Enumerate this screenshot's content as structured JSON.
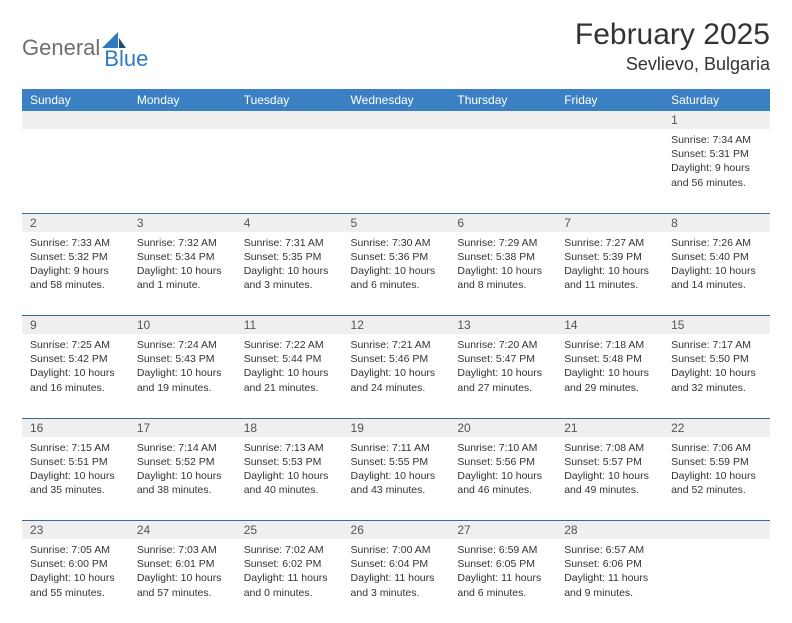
{
  "brand": {
    "text1": "General",
    "text2": "Blue"
  },
  "title": "February 2025",
  "location": "Sevlievo, Bulgaria",
  "colors": {
    "header_bg": "#3a80c3",
    "header_text": "#ffffff",
    "daynum_bg": "#efefef",
    "cell_border": "#3a6a94",
    "logo_gray": "#6f6f6f",
    "logo_blue": "#2f7bbf"
  },
  "weekdays": [
    "Sunday",
    "Monday",
    "Tuesday",
    "Wednesday",
    "Thursday",
    "Friday",
    "Saturday"
  ],
  "weeks": [
    {
      "nums": [
        "",
        "",
        "",
        "",
        "",
        "",
        "1"
      ],
      "cells": [
        null,
        null,
        null,
        null,
        null,
        null,
        {
          "sunrise": "Sunrise: 7:34 AM",
          "sunset": "Sunset: 5:31 PM",
          "daylight": "Daylight: 9 hours and 56 minutes."
        }
      ]
    },
    {
      "nums": [
        "2",
        "3",
        "4",
        "5",
        "6",
        "7",
        "8"
      ],
      "cells": [
        {
          "sunrise": "Sunrise: 7:33 AM",
          "sunset": "Sunset: 5:32 PM",
          "daylight": "Daylight: 9 hours and 58 minutes."
        },
        {
          "sunrise": "Sunrise: 7:32 AM",
          "sunset": "Sunset: 5:34 PM",
          "daylight": "Daylight: 10 hours and 1 minute."
        },
        {
          "sunrise": "Sunrise: 7:31 AM",
          "sunset": "Sunset: 5:35 PM",
          "daylight": "Daylight: 10 hours and 3 minutes."
        },
        {
          "sunrise": "Sunrise: 7:30 AM",
          "sunset": "Sunset: 5:36 PM",
          "daylight": "Daylight: 10 hours and 6 minutes."
        },
        {
          "sunrise": "Sunrise: 7:29 AM",
          "sunset": "Sunset: 5:38 PM",
          "daylight": "Daylight: 10 hours and 8 minutes."
        },
        {
          "sunrise": "Sunrise: 7:27 AM",
          "sunset": "Sunset: 5:39 PM",
          "daylight": "Daylight: 10 hours and 11 minutes."
        },
        {
          "sunrise": "Sunrise: 7:26 AM",
          "sunset": "Sunset: 5:40 PM",
          "daylight": "Daylight: 10 hours and 14 minutes."
        }
      ]
    },
    {
      "nums": [
        "9",
        "10",
        "11",
        "12",
        "13",
        "14",
        "15"
      ],
      "cells": [
        {
          "sunrise": "Sunrise: 7:25 AM",
          "sunset": "Sunset: 5:42 PM",
          "daylight": "Daylight: 10 hours and 16 minutes."
        },
        {
          "sunrise": "Sunrise: 7:24 AM",
          "sunset": "Sunset: 5:43 PM",
          "daylight": "Daylight: 10 hours and 19 minutes."
        },
        {
          "sunrise": "Sunrise: 7:22 AM",
          "sunset": "Sunset: 5:44 PM",
          "daylight": "Daylight: 10 hours and 21 minutes."
        },
        {
          "sunrise": "Sunrise: 7:21 AM",
          "sunset": "Sunset: 5:46 PM",
          "daylight": "Daylight: 10 hours and 24 minutes."
        },
        {
          "sunrise": "Sunrise: 7:20 AM",
          "sunset": "Sunset: 5:47 PM",
          "daylight": "Daylight: 10 hours and 27 minutes."
        },
        {
          "sunrise": "Sunrise: 7:18 AM",
          "sunset": "Sunset: 5:48 PM",
          "daylight": "Daylight: 10 hours and 29 minutes."
        },
        {
          "sunrise": "Sunrise: 7:17 AM",
          "sunset": "Sunset: 5:50 PM",
          "daylight": "Daylight: 10 hours and 32 minutes."
        }
      ]
    },
    {
      "nums": [
        "16",
        "17",
        "18",
        "19",
        "20",
        "21",
        "22"
      ],
      "cells": [
        {
          "sunrise": "Sunrise: 7:15 AM",
          "sunset": "Sunset: 5:51 PM",
          "daylight": "Daylight: 10 hours and 35 minutes."
        },
        {
          "sunrise": "Sunrise: 7:14 AM",
          "sunset": "Sunset: 5:52 PM",
          "daylight": "Daylight: 10 hours and 38 minutes."
        },
        {
          "sunrise": "Sunrise: 7:13 AM",
          "sunset": "Sunset: 5:53 PM",
          "daylight": "Daylight: 10 hours and 40 minutes."
        },
        {
          "sunrise": "Sunrise: 7:11 AM",
          "sunset": "Sunset: 5:55 PM",
          "daylight": "Daylight: 10 hours and 43 minutes."
        },
        {
          "sunrise": "Sunrise: 7:10 AM",
          "sunset": "Sunset: 5:56 PM",
          "daylight": "Daylight: 10 hours and 46 minutes."
        },
        {
          "sunrise": "Sunrise: 7:08 AM",
          "sunset": "Sunset: 5:57 PM",
          "daylight": "Daylight: 10 hours and 49 minutes."
        },
        {
          "sunrise": "Sunrise: 7:06 AM",
          "sunset": "Sunset: 5:59 PM",
          "daylight": "Daylight: 10 hours and 52 minutes."
        }
      ]
    },
    {
      "nums": [
        "23",
        "24",
        "25",
        "26",
        "27",
        "28",
        ""
      ],
      "cells": [
        {
          "sunrise": "Sunrise: 7:05 AM",
          "sunset": "Sunset: 6:00 PM",
          "daylight": "Daylight: 10 hours and 55 minutes."
        },
        {
          "sunrise": "Sunrise: 7:03 AM",
          "sunset": "Sunset: 6:01 PM",
          "daylight": "Daylight: 10 hours and 57 minutes."
        },
        {
          "sunrise": "Sunrise: 7:02 AM",
          "sunset": "Sunset: 6:02 PM",
          "daylight": "Daylight: 11 hours and 0 minutes."
        },
        {
          "sunrise": "Sunrise: 7:00 AM",
          "sunset": "Sunset: 6:04 PM",
          "daylight": "Daylight: 11 hours and 3 minutes."
        },
        {
          "sunrise": "Sunrise: 6:59 AM",
          "sunset": "Sunset: 6:05 PM",
          "daylight": "Daylight: 11 hours and 6 minutes."
        },
        {
          "sunrise": "Sunrise: 6:57 AM",
          "sunset": "Sunset: 6:06 PM",
          "daylight": "Daylight: 11 hours and 9 minutes."
        },
        null
      ]
    }
  ]
}
